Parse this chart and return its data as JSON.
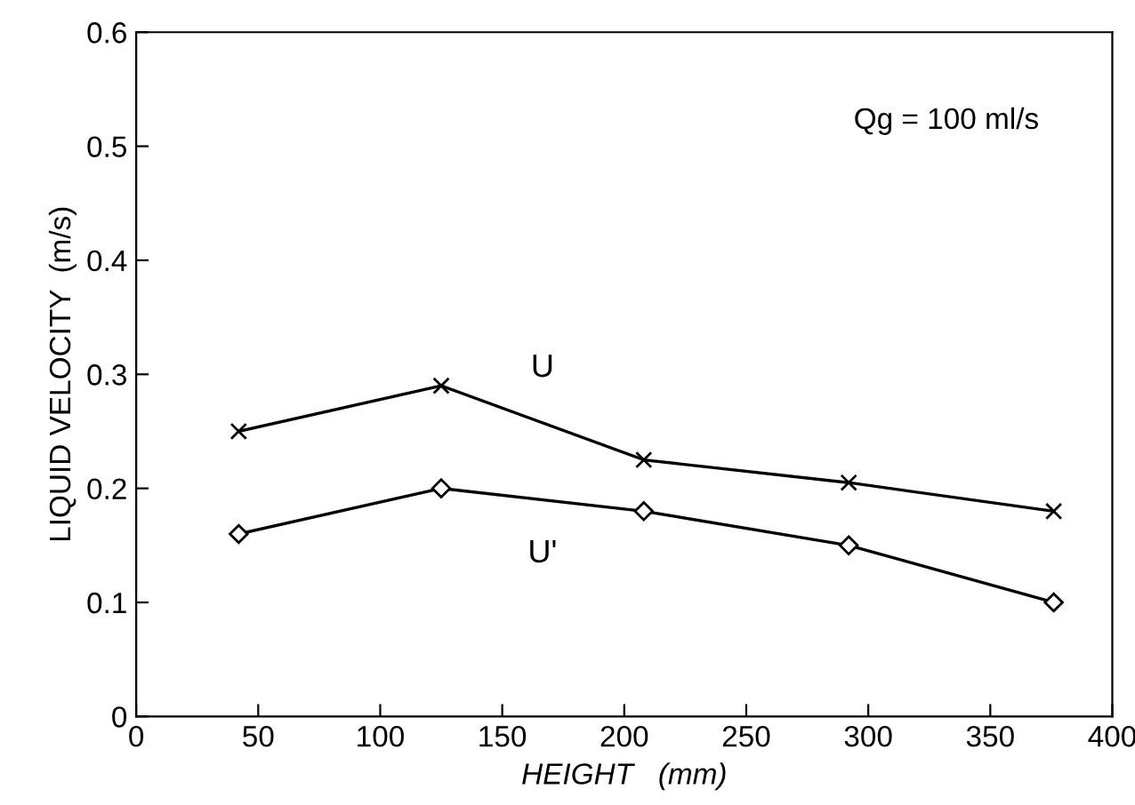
{
  "chart_data": {
    "type": "line",
    "xlabel": "HEIGHT   (mm)",
    "ylabel": "LIQUID VELOCITY  (m/s)",
    "x": [
      42,
      125,
      208,
      292,
      376
    ],
    "series": [
      {
        "name": "U",
        "color": "#000000",
        "marker": "cross",
        "values": [
          0.25,
          0.29,
          0.225,
          0.205,
          0.18
        ]
      },
      {
        "name": "U'",
        "color": "#000000",
        "marker": "diamond",
        "values": [
          0.16,
          0.2,
          0.18,
          0.15,
          0.1
        ]
      }
    ],
    "annotations": [
      "Qg = 100 ml/s"
    ],
    "xlim": [
      0,
      400
    ],
    "xticks": [
      0,
      50,
      100,
      150,
      200,
      250,
      300,
      350,
      400
    ],
    "ylim": [
      0,
      0.6
    ],
    "yticks": [
      0,
      0.1,
      0.2,
      0.3,
      0.4,
      0.5,
      0.6
    ],
    "line_style": "solid",
    "grid": false,
    "legend": false
  }
}
